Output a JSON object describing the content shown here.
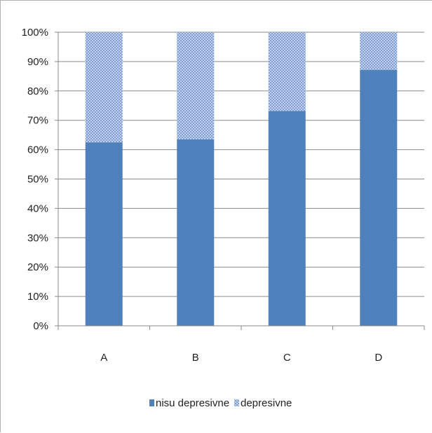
{
  "chart_data": {
    "type": "bar",
    "stacked": true,
    "percent": true,
    "title": "",
    "xlabel": "",
    "ylabel": "",
    "categories": [
      "A",
      "B",
      "C",
      "D"
    ],
    "series": [
      {
        "name": "nisu depresivne",
        "values": [
          62.5,
          63.5,
          73.2,
          87.2
        ],
        "color": "#4f81bd",
        "fill": "solid"
      },
      {
        "name": "depresivne",
        "values": [
          37.5,
          36.5,
          26.8,
          12.8
        ],
        "color": "#8eaadc",
        "fill": "pattern"
      }
    ],
    "ylim": [
      0,
      100
    ],
    "ytick_labels": [
      "0%",
      "10%",
      "20%",
      "30%",
      "40%",
      "50%",
      "60%",
      "70%",
      "80%",
      "90%",
      "100%"
    ],
    "grid": true,
    "legend": "bottom"
  }
}
